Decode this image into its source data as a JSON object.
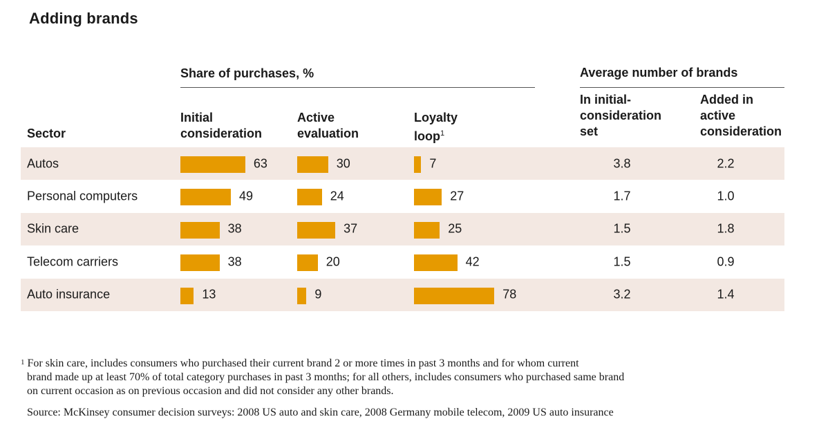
{
  "title": "Adding brands",
  "groups": {
    "share": "Share of purchases, %",
    "avg": "Average number of brands"
  },
  "columns": {
    "sector": "Sector",
    "initial": [
      "Initial",
      "consideration"
    ],
    "active": [
      "Active",
      "evaluation"
    ],
    "loyalty": [
      "Loyalty",
      "loop"
    ],
    "loyalty_mark": "1",
    "set": [
      "In initial-",
      "consideration",
      "set"
    ],
    "added": [
      "Added in",
      "active",
      "consideration"
    ]
  },
  "chart_data": {
    "type": "bar",
    "categories": [
      "Autos",
      "Personal computers",
      "Skin care",
      "Telecom carriers",
      "Auto insurance"
    ],
    "series": [
      {
        "name": "Initial consideration",
        "values": [
          63,
          49,
          38,
          38,
          13
        ]
      },
      {
        "name": "Active evaluation",
        "values": [
          30,
          24,
          37,
          20,
          9
        ]
      },
      {
        "name": "Loyalty loop",
        "values": [
          7,
          27,
          25,
          42,
          78
        ]
      }
    ],
    "avg_initial_set": [
      "3.8",
      "1.7",
      "1.5",
      "1.5",
      "3.2"
    ],
    "avg_added_active": [
      "2.2",
      "1.0",
      "1.8",
      "0.9",
      "1.4"
    ],
    "color": "#e69a00",
    "row_shading": "#f3e8e2"
  },
  "footnote": {
    "mark": "1",
    "lines": [
      "For skin care, includes consumers who purchased their current brand 2 or more times in past 3 months and for whom current",
      "brand made up at least 70% of total category purchases in past 3 months; for all others, includes consumers who purchased same brand",
      "on current occasion as on previous occasion and did not consider any other brands."
    ]
  },
  "source": "Source: McKinsey consumer decision surveys: 2008 US auto and skin care, 2008 Germany mobile telecom, 2009 US auto insurance"
}
